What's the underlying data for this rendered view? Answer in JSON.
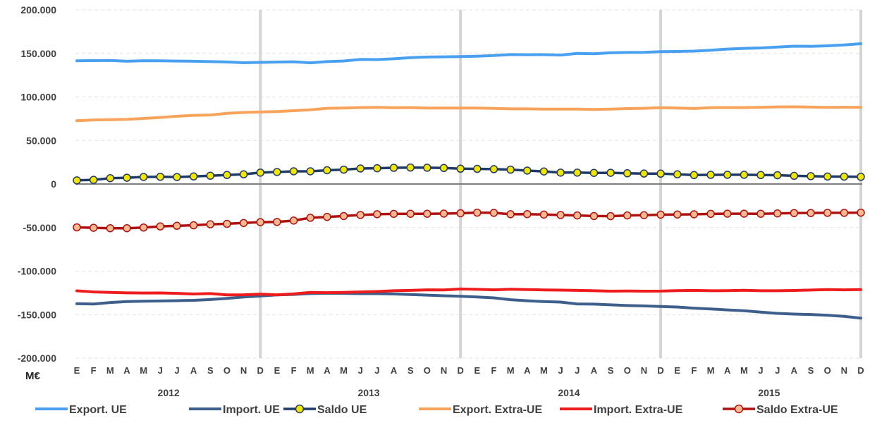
{
  "chart_data": {
    "type": "line",
    "unit_label": "M€",
    "ylim": [
      -200000,
      200000
    ],
    "y_ticks": [
      200000,
      150000,
      100000,
      50000,
      0,
      -50000,
      -100000,
      -150000,
      -200000
    ],
    "y_tick_labels": [
      "200.000",
      "150.000",
      "100.000",
      "50.000",
      "0",
      "-50.000",
      "-100.000",
      "-150.000",
      "-200.000"
    ],
    "month_labels": [
      "E",
      "F",
      "M",
      "A",
      "M",
      "J",
      "J",
      "A",
      "S",
      "O",
      "N",
      "D",
      "E",
      "F",
      "M",
      "A",
      "M",
      "J",
      "J",
      "A",
      "S",
      "O",
      "N",
      "D",
      "E",
      "F",
      "M",
      "A",
      "M",
      "J",
      "J",
      "A",
      "S",
      "O",
      "N",
      "D",
      "E",
      "F",
      "M",
      "A",
      "M",
      "J",
      "J",
      "A",
      "S",
      "O",
      "N",
      "D"
    ],
    "years": [
      "2012",
      "2013",
      "2014",
      "2015"
    ],
    "grid": "horizontal dashed, vertical at each December",
    "legend_position": "bottom",
    "series": [
      {
        "name": "Export. UE",
        "color": "#4aa0f0",
        "marker": false,
        "values": [
          141500,
          141700,
          141900,
          141000,
          141600,
          141500,
          141200,
          141000,
          140600,
          140200,
          139300,
          139700,
          140100,
          140400,
          139200,
          140600,
          141300,
          143100,
          142900,
          143800,
          145100,
          145800,
          146100,
          146300,
          146800,
          147600,
          148700,
          148500,
          148600,
          148100,
          150000,
          149600,
          150700,
          151100,
          151200,
          152000,
          152200,
          152600,
          153700,
          155000,
          155800,
          156300,
          157300,
          158300,
          158100,
          158700,
          159700,
          161100
        ]
      },
      {
        "name": "Import. UE",
        "color": "#3e5f8c",
        "marker": false,
        "values": [
          -137500,
          -137800,
          -136100,
          -135000,
          -134600,
          -134300,
          -134000,
          -133600,
          -132700,
          -131400,
          -129800,
          -128700,
          -127400,
          -126800,
          -125800,
          -125400,
          -125600,
          -125900,
          -125900,
          -126300,
          -126900,
          -127600,
          -128300,
          -129000,
          -129700,
          -130800,
          -132900,
          -134100,
          -135100,
          -135600,
          -137700,
          -138000,
          -138800,
          -139600,
          -140000,
          -140700,
          -141300,
          -142600,
          -143500,
          -144600,
          -145500,
          -147100,
          -148600,
          -149400,
          -149900,
          -150700,
          -152100,
          -154000
        ]
      },
      {
        "name": "Saldo UE",
        "color": "#1f3a68",
        "marker": true,
        "marker_fill": "#f2e600",
        "values": [
          4200,
          4800,
          6700,
          7200,
          8100,
          8300,
          8000,
          8700,
          9500,
          10400,
          11100,
          13100,
          13800,
          14600,
          14600,
          15800,
          16500,
          17800,
          18100,
          18600,
          18900,
          18700,
          18400,
          17600,
          17400,
          17100,
          16500,
          15400,
          14400,
          13100,
          13100,
          12800,
          12900,
          12300,
          12000,
          11900,
          11100,
          10300,
          10500,
          10600,
          10600,
          10300,
          10100,
          9400,
          9000,
          8600,
          8500,
          8300
        ]
      },
      {
        "name": "Export. Extra-UE",
        "color": "#f7a35c",
        "marker": false,
        "values": [
          72700,
          73600,
          73900,
          74300,
          75300,
          76400,
          77800,
          78900,
          79300,
          81200,
          82200,
          82700,
          83200,
          84200,
          85300,
          87000,
          87300,
          87800,
          88100,
          87700,
          87800,
          87300,
          87300,
          87300,
          87300,
          86900,
          86300,
          86300,
          86100,
          86000,
          86000,
          85700,
          86100,
          86600,
          87000,
          87700,
          87200,
          86700,
          87700,
          87800,
          87800,
          88100,
          88600,
          88700,
          88300,
          87900,
          88200,
          88100
        ]
      },
      {
        "name": "Import. Extra-UE",
        "color": "#ee1c1c",
        "marker": false,
        "values": [
          -122700,
          -124000,
          -124500,
          -125000,
          -125200,
          -125100,
          -125600,
          -126300,
          -125800,
          -127400,
          -127200,
          -126500,
          -127300,
          -126200,
          -124500,
          -124800,
          -124500,
          -124000,
          -123500,
          -122600,
          -122200,
          -121500,
          -121700,
          -120600,
          -121000,
          -121500,
          -120900,
          -121200,
          -121600,
          -121900,
          -122200,
          -122600,
          -123100,
          -122900,
          -123100,
          -123000,
          -122400,
          -122200,
          -122600,
          -122500,
          -122100,
          -122600,
          -122600,
          -122300,
          -121800,
          -121300,
          -121500,
          -121200
        ]
      },
      {
        "name": "Saldo Extra-UE",
        "color": "#b01010",
        "marker": true,
        "marker_fill": "#f6b990",
        "values": [
          -49800,
          -50300,
          -50800,
          -50800,
          -50000,
          -48700,
          -48000,
          -47400,
          -46300,
          -45700,
          -44800,
          -43800,
          -43600,
          -42000,
          -38800,
          -37800,
          -36800,
          -35600,
          -34700,
          -34300,
          -34200,
          -34200,
          -34000,
          -33600,
          -32900,
          -33100,
          -34700,
          -34600,
          -35100,
          -35600,
          -36100,
          -36800,
          -36900,
          -36100,
          -35800,
          -35200,
          -35000,
          -34800,
          -34300,
          -34100,
          -34100,
          -34200,
          -33800,
          -33400,
          -33300,
          -33100,
          -33100,
          -32900
        ]
      }
    ]
  }
}
